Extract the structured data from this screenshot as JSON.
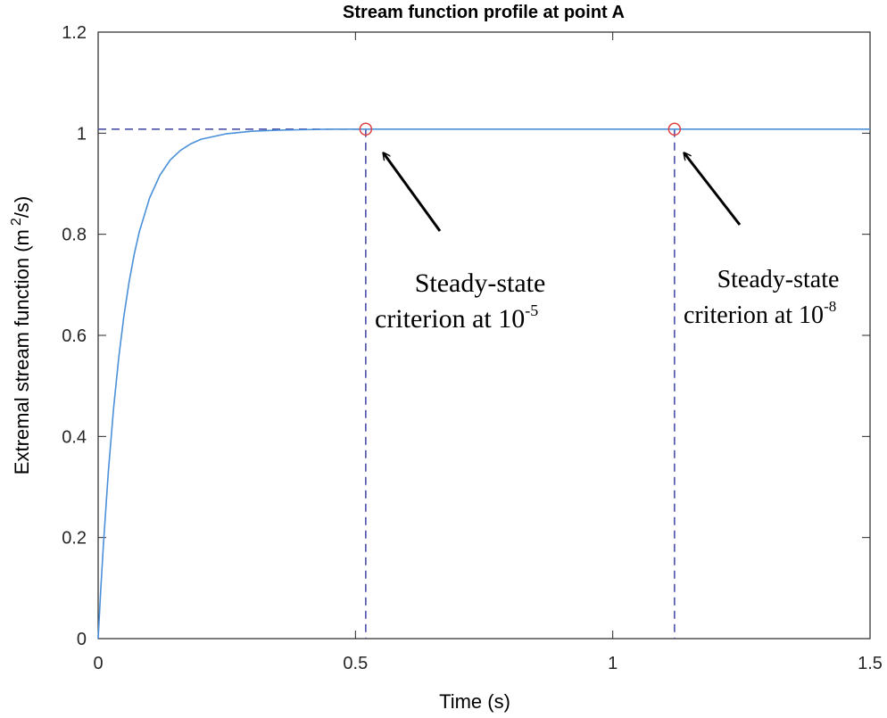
{
  "chart_data": {
    "type": "line",
    "title": "Stream function profile at point A",
    "xlabel": "Time (s)",
    "ylabel_main": "Extremal stream function (m",
    "ylabel_sup": "2",
    "ylabel_tail": "/s)",
    "xlim": [
      0,
      1.5
    ],
    "ylim": [
      0,
      1.2
    ],
    "xticks": [
      0,
      0.5,
      1,
      1.5
    ],
    "xtick_labels": [
      "0",
      "0.5",
      "1",
      "1.5"
    ],
    "yticks": [
      0,
      0.2,
      0.4,
      0.6,
      0.8,
      1.0,
      1.2
    ],
    "ytick_labels": [
      "0",
      "0.2",
      "0.4",
      "0.6",
      "0.8",
      "1",
      "1.2"
    ],
    "grid": false,
    "series": [
      {
        "x": [
          0,
          0.005,
          0.01,
          0.02,
          0.03,
          0.04,
          0.05,
          0.06,
          0.07,
          0.08,
          0.1,
          0.12,
          0.14,
          0.16,
          0.18,
          0.2,
          0.25,
          0.3,
          0.35,
          0.4,
          0.45,
          0.5,
          0.6,
          0.8,
          1.0,
          1.2,
          1.5
        ],
        "y": [
          0,
          0.096,
          0.183,
          0.333,
          0.456,
          0.556,
          0.638,
          0.705,
          0.76,
          0.805,
          0.872,
          0.917,
          0.947,
          0.966,
          0.979,
          0.988,
          0.999,
          1.004,
          1.006,
          1.007,
          1.008,
          1.008,
          1.008,
          1.008,
          1.008,
          1.008,
          1.008
        ],
        "color": "#4a90d9"
      }
    ],
    "steady_level": 1.008,
    "markers": [
      {
        "x": 0.52,
        "y": 1.008
      },
      {
        "x": 1.12,
        "y": 1.008
      }
    ],
    "annotations": [
      {
        "line1": "Steady-state",
        "line2": "criterion at 10",
        "exp": "-5"
      },
      {
        "line1": "Steady-state",
        "line2": "criterion at 10",
        "exp": "-8"
      }
    ],
    "colors": {
      "curve": "#4a90d9",
      "dashed": "#4b4fa8",
      "marker": "#e04040",
      "axis": "#262626"
    }
  }
}
